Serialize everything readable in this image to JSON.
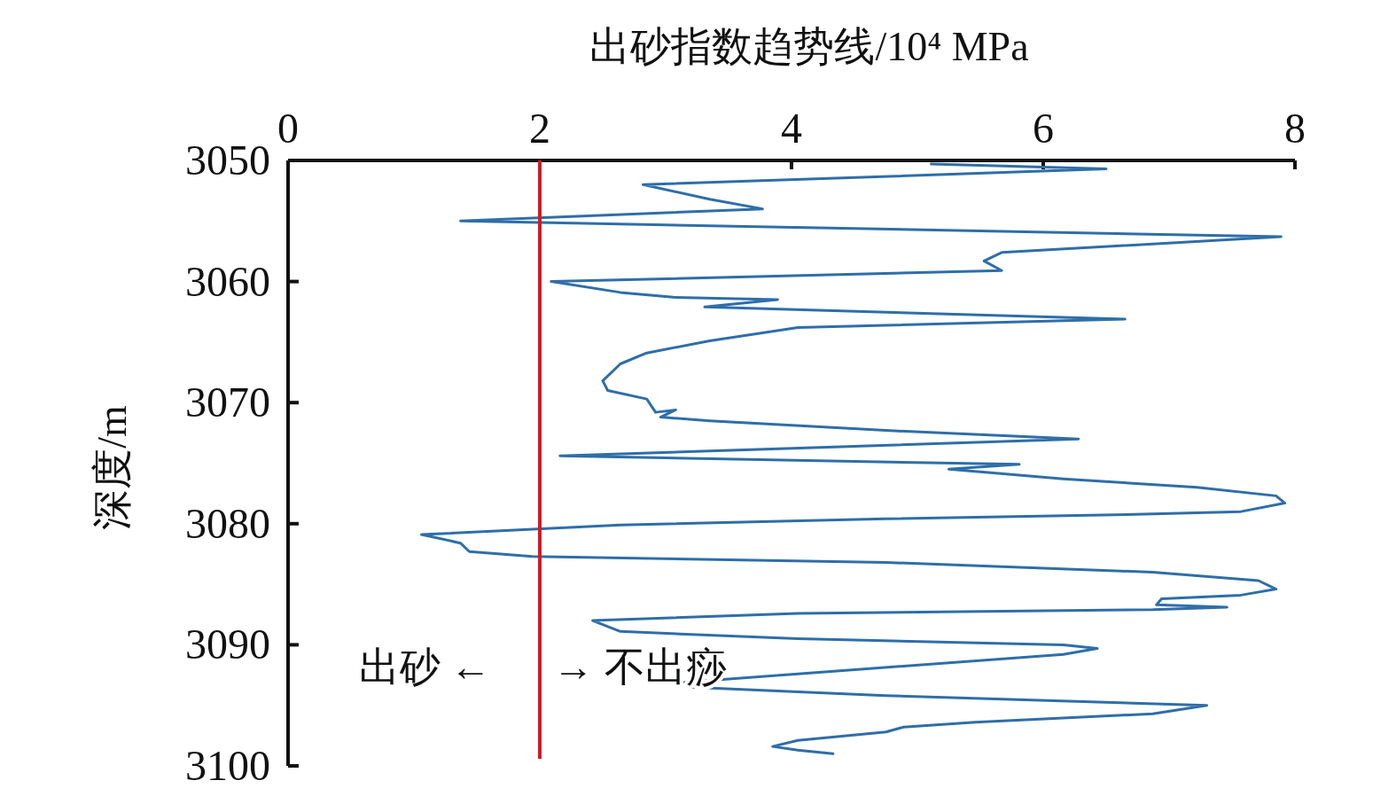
{
  "chart_data": {
    "type": "line",
    "title": "出砂指数趋势线/10⁴ MPa",
    "ylabel": "深度/m",
    "xlim": [
      0,
      8
    ],
    "xticks": [
      0,
      2,
      4,
      6,
      8
    ],
    "ylim": [
      3100,
      3050
    ],
    "yticks": [
      3050,
      3060,
      3070,
      3080,
      3090,
      3100
    ],
    "grid": false,
    "marker": "none",
    "line_style": "solid",
    "ref_lines": [
      {
        "axis": "x",
        "value": 2,
        "color": "#c8202a",
        "line_style": "solid"
      }
    ],
    "annotations": [
      "出砂 ←",
      "→ 不出痧"
    ],
    "series": [
      {
        "color": "#2f6ea8",
        "x": [
          5.11,
          6.5,
          2.82,
          3.35,
          3.77,
          1.37,
          7.89,
          5.67,
          5.53,
          5.67,
          2.09,
          2.64,
          3.06,
          3.89,
          3.31,
          6.65,
          4.05,
          3.35,
          2.85,
          2.64,
          2.5,
          2.54,
          2.85,
          2.92,
          3.08,
          2.96,
          3.35,
          4.75,
          6.28,
          2.16,
          5.81,
          5.25,
          6.16,
          7.22,
          7.85,
          7.92,
          7.57,
          6.87,
          4.75,
          2.64,
          1.06,
          1.37,
          1.44,
          1.94,
          4.75,
          6.87,
          7.71,
          7.85,
          7.57,
          6.94,
          6.9,
          7.46,
          6.87,
          4.05,
          2.42,
          2.64,
          4.05,
          6.16,
          6.43,
          6.16,
          4.05,
          3.15,
          3.2,
          4.75,
          7.3,
          6.87,
          5.46,
          4.89,
          4.75,
          4.05,
          3.85,
          4.05,
          4.33
        ],
        "values": [
          3050.3,
          3050.7,
          3052.0,
          3053.2,
          3054.0,
          3055.0,
          3056.3,
          3057.6,
          3058.3,
          3059.1,
          3060.0,
          3060.9,
          3061.3,
          3061.5,
          3062.1,
          3063.1,
          3063.8,
          3064.9,
          3065.9,
          3066.8,
          3068.2,
          3069.0,
          3069.7,
          3070.8,
          3070.6,
          3071.2,
          3071.5,
          3072.3,
          3073.0,
          3074.4,
          3075.1,
          3075.5,
          3076.3,
          3077.0,
          3077.7,
          3078.3,
          3079.0,
          3079.2,
          3079.6,
          3080.1,
          3080.9,
          3081.6,
          3082.3,
          3082.7,
          3083.2,
          3084.0,
          3084.7,
          3085.4,
          3085.9,
          3086.2,
          3086.7,
          3086.9,
          3087.1,
          3087.4,
          3088.0,
          3088.9,
          3089.5,
          3090.0,
          3090.3,
          3090.8,
          3092.4,
          3093.1,
          3093.5,
          3094.2,
          3095.0,
          3095.7,
          3096.4,
          3096.8,
          3097.2,
          3097.9,
          3098.4,
          3098.7,
          3099.0
        ]
      }
    ]
  }
}
